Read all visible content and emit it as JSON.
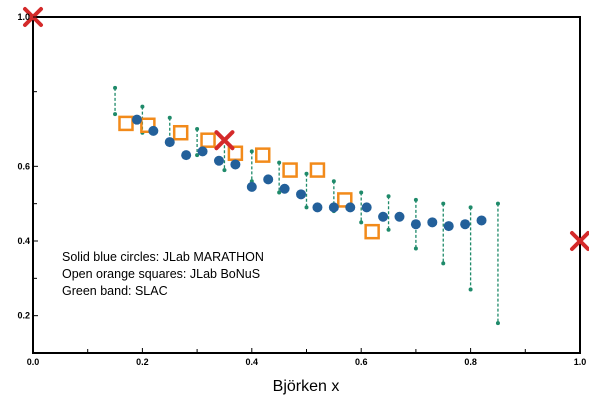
{
  "chart_data": {
    "type": "scatter",
    "xlabel": "Björken x",
    "ylabel": "",
    "xlim": [
      0,
      1
    ],
    "ylim": [
      0.1,
      1.0
    ],
    "x_ticks": [
      "0.0",
      "0.2",
      "0.4",
      "0.6",
      "0.8",
      "1.0"
    ],
    "y_ticks": [
      "0.2",
      "0.4",
      "0.6",
      "1.0"
    ],
    "legend_notes": [
      "Solid blue circles: JLab MARATHON",
      "Open orange squares: JLab BoNuS",
      "Green band: SLAC"
    ],
    "colors": {
      "marathon": "#23609a",
      "bonus": "#f28a1a",
      "slac": "#1f8a6a",
      "marker_x": "#d42a2a"
    },
    "marathon": {
      "x": [
        0.19,
        0.22,
        0.25,
        0.28,
        0.31,
        0.34,
        0.37,
        0.4,
        0.43,
        0.46,
        0.49,
        0.52,
        0.55,
        0.58,
        0.61,
        0.64,
        0.67,
        0.7,
        0.73,
        0.76,
        0.79,
        0.82
      ],
      "y": [
        0.725,
        0.695,
        0.665,
        0.63,
        0.64,
        0.615,
        0.605,
        0.545,
        0.565,
        0.54,
        0.525,
        0.49,
        0.49,
        0.49,
        0.49,
        0.465,
        0.465,
        0.445,
        0.45,
        0.44,
        0.445,
        0.455
      ]
    },
    "bonus": {
      "x": [
        0.17,
        0.21,
        0.27,
        0.32,
        0.37,
        0.42,
        0.47,
        0.52,
        0.57,
        0.62
      ],
      "y": [
        0.715,
        0.71,
        0.69,
        0.67,
        0.635,
        0.63,
        0.59,
        0.59,
        0.51,
        0.425
      ]
    },
    "slac": {
      "x": [
        0.15,
        0.2,
        0.25,
        0.3,
        0.35,
        0.4,
        0.45,
        0.5,
        0.55,
        0.6,
        0.65,
        0.7,
        0.75,
        0.8,
        0.85
      ],
      "upper": [
        0.81,
        0.76,
        0.73,
        0.7,
        0.67,
        0.64,
        0.61,
        0.58,
        0.56,
        0.53,
        0.52,
        0.51,
        0.5,
        0.49,
        0.5
      ],
      "lower": [
        0.74,
        0.69,
        0.66,
        0.63,
        0.59,
        0.56,
        0.53,
        0.49,
        0.48,
        0.45,
        0.43,
        0.38,
        0.34,
        0.27,
        0.18
      ]
    },
    "x_markers": [
      {
        "x": 0.0,
        "y": 1.0
      },
      {
        "x": 0.35,
        "y": 0.67
      },
      {
        "x": 1.0,
        "y": 0.4
      }
    ]
  }
}
